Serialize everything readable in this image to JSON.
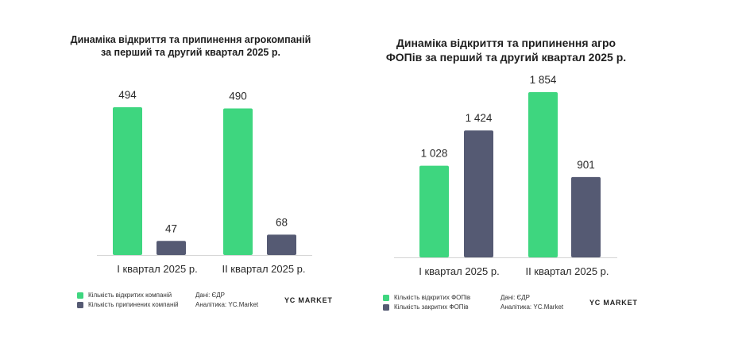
{
  "colors": {
    "green": "#3ed67f",
    "navy": "#555a73",
    "axis": "#d5d5d5"
  },
  "chart_data": [
    {
      "type": "bar",
      "title_line1": "Динаміка відкриття та припинення агрокомпаній",
      "title_line2": "за перший та другий квартал 2025 р.",
      "categories": [
        "I квартал 2025 р.",
        "II квартал 2025 р."
      ],
      "series": [
        {
          "name": "Кількість відкритих компаній",
          "values": [
            494,
            47
          ],
          "labels": [
            "494",
            "47"
          ]
        },
        {
          "name": "Кількість припинених компаній",
          "values": [
            490,
            68
          ],
          "labels": [
            "490",
            "68"
          ]
        }
      ],
      "source": "Дані: ЄДР",
      "analytics": "Аналітика: YC.Market",
      "brand": "YC MARKET",
      "grid": false,
      "legend_position": "bottom-left"
    },
    {
      "type": "bar",
      "title_line1": "Динаміка відкриття та припинення агро",
      "title_line2": "ФОПів за перший та другий квартал 2025 р.",
      "categories": [
        "I квартал 2025 р.",
        "II квартал 2025 р."
      ],
      "series": [
        {
          "name": "Кількість відкритих ФОПів",
          "values": [
            1028,
            1424
          ],
          "labels": [
            "1 028",
            "1 424"
          ]
        },
        {
          "name": "Кількість закритих ФОПів",
          "values": [
            1854,
            901
          ],
          "labels": [
            "1 854",
            "901"
          ]
        }
      ],
      "source": "Дані: ЄДР",
      "analytics": "Аналітика: YC.Market",
      "brand": "YC MARKET",
      "grid": false,
      "legend_position": "bottom-left"
    }
  ]
}
